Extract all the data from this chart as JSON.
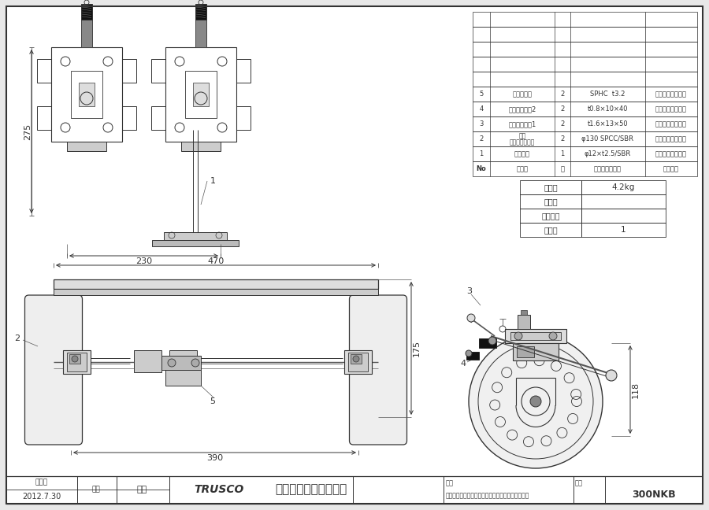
{
  "bg_color": "#e8e8e8",
  "page_bg": "#ffffff",
  "line_color": "#333333",
  "title": "300NKB",
  "company": "トラスコ中山株式会社",
  "product_name": "ドンキーカート用オプションブレーキピン式タイプ",
  "date_label": "作成日",
  "date": "2012.7.30",
  "check_label": "検図",
  "checker": "青木",
  "parts_table_rows": [
    [
      "5",
      "ブレーキ部",
      "2",
      "SPHC  t3.2",
      "三価クロムメッキ"
    ],
    [
      "4",
      "引っ張りバネ2",
      "2",
      "t0.8×10×40",
      "三価クロムメッキ"
    ],
    [
      "3",
      "引っ張りバネ1",
      "2",
      "t1.6×13×50",
      "三価クロムメッキ"
    ],
    [
      "2",
      "番号\n固定キャスター",
      "2",
      "φ130 SPCC/SBR",
      "三価クロムメッキ"
    ],
    [
      "1",
      "ペダル部",
      "1",
      "φ12×t2.5/SBR",
      "三価クロムメッキ"
    ]
  ],
  "parts_table_header": [
    "No",
    "部品名",
    "数",
    "材質、厚／品番",
    "表面処理"
  ],
  "specs_rows": [
    [
      "自　重",
      "4.2kg"
    ],
    [
      "サイズ",
      ""
    ],
    [
      "積載荷重",
      ""
    ],
    [
      "細包数",
      "1"
    ]
  ],
  "dim_275": "275",
  "dim_230": "230",
  "dim_470": "470",
  "dim_390": "390",
  "dim_175": "175",
  "dim_118": "118"
}
